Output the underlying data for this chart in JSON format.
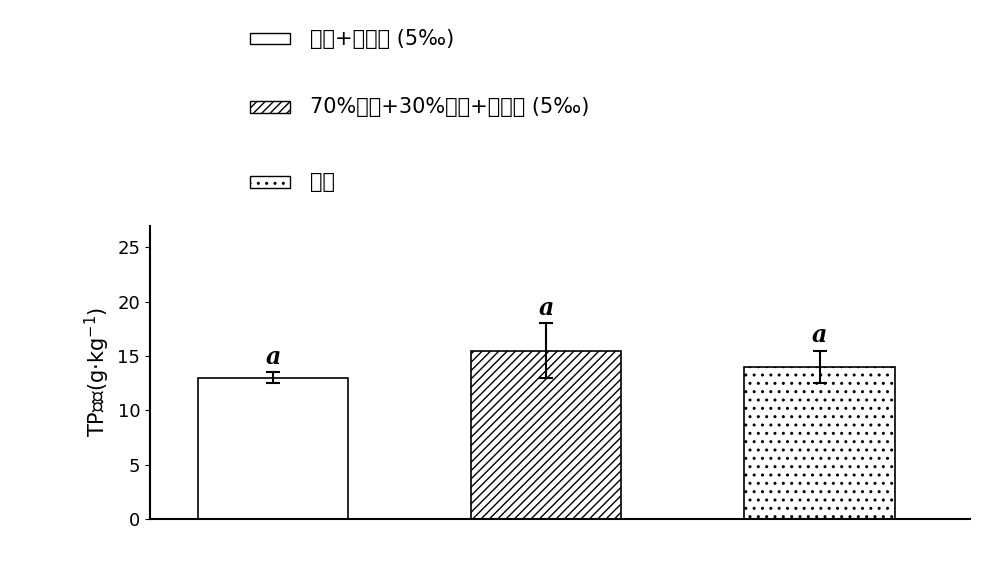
{
  "values": [
    13.0,
    15.5,
    14.0
  ],
  "errors": [
    0.5,
    2.5,
    1.5
  ],
  "hatches": [
    "",
    "////",
    ".."
  ],
  "bar_colors": [
    "white",
    "white",
    "white"
  ],
  "bar_edgecolors": [
    "black",
    "black",
    "black"
  ],
  "bar_width": 0.55,
  "ylim": [
    0,
    27
  ],
  "yticks": [
    0,
    5,
    10,
    15,
    20,
    25
  ],
  "ylabel": "TP含量(g·kg-1)",
  "ylabel_fontsize": 15,
  "tick_fontsize": 13,
  "sig_labels": [
    "a",
    "a",
    "a"
  ],
  "sig_fontsize": 17,
  "legend_labels": [
    "葫渣+腐解菌 (5‰)",
    "70%葫渣+30%牛粪+腐解菌 (5‰)",
    "牛粪"
  ],
  "legend_hatches": [
    "",
    "////",
    ".."
  ],
  "legend_fontsize": 15,
  "background_color": "#ffffff",
  "bar_positions": [
    1,
    2,
    3
  ],
  "figsize": [
    10.0,
    5.64
  ],
  "dpi": 100
}
